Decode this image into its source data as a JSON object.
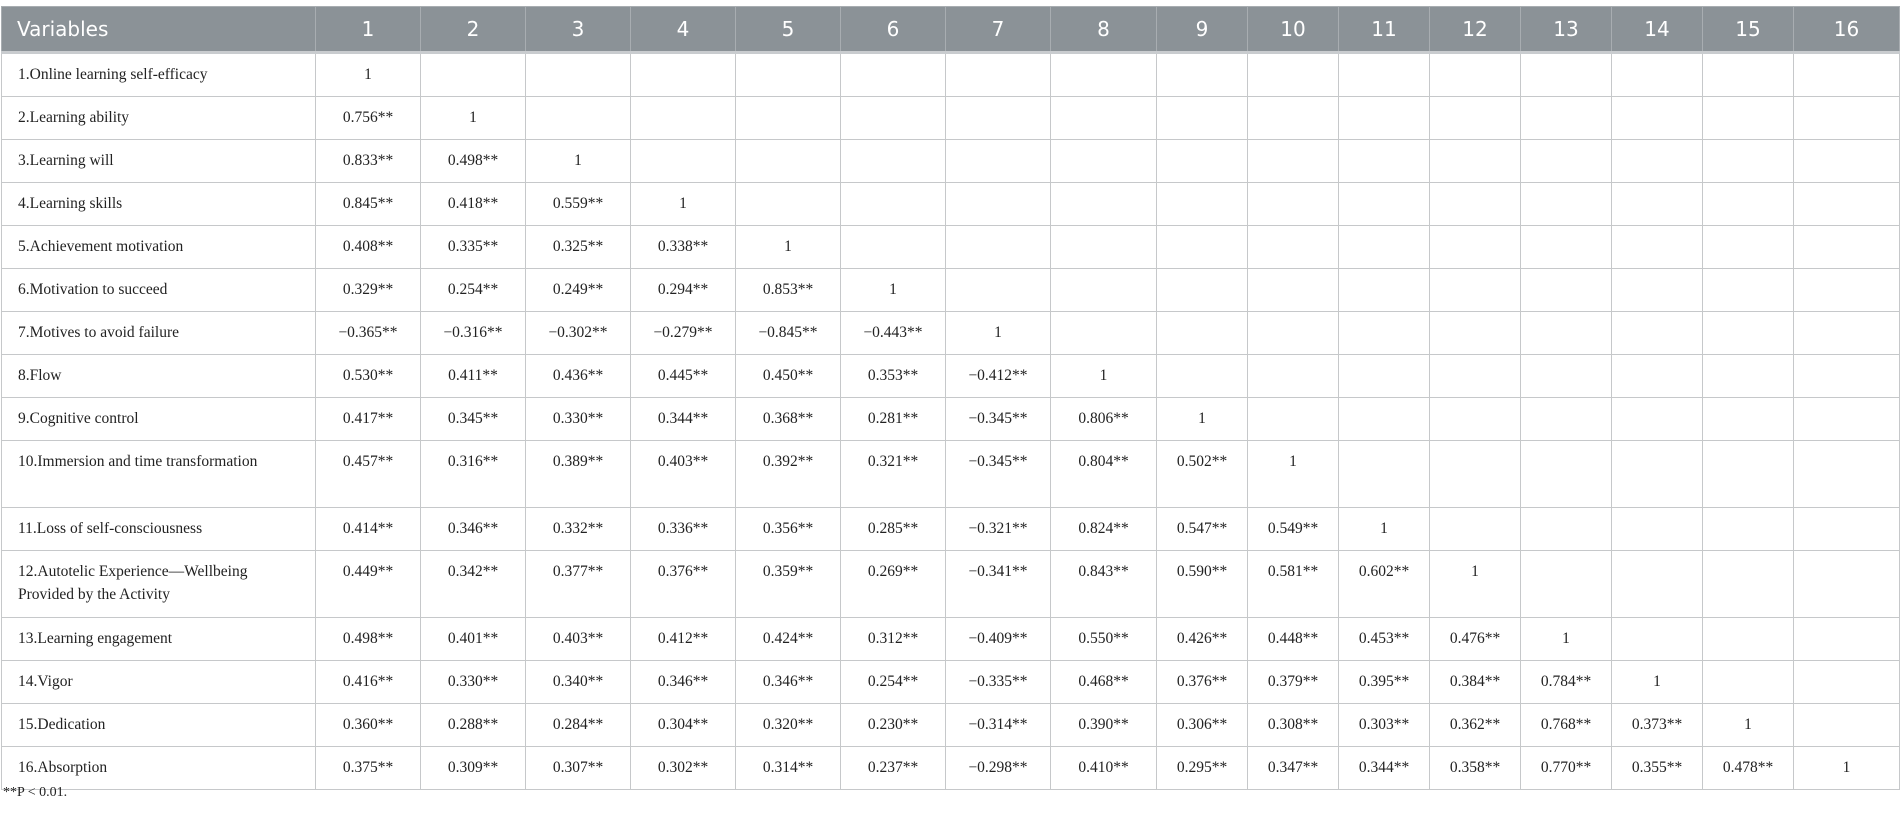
{
  "table": {
    "header": [
      "Variables",
      "1",
      "2",
      "3",
      "4",
      "5",
      "6",
      "7",
      "8",
      "9",
      "10",
      "11",
      "12",
      "13",
      "14",
      "15",
      "16"
    ],
    "rows": [
      {
        "label": "1.Online learning self-efficacy",
        "values": [
          "1"
        ]
      },
      {
        "label": "2.Learning ability",
        "values": [
          "0.756**",
          "1"
        ]
      },
      {
        "label": "3.Learning will",
        "values": [
          "0.833**",
          "0.498**",
          "1"
        ]
      },
      {
        "label": "4.Learning skills",
        "values": [
          "0.845**",
          "0.418**",
          "0.559**",
          "1"
        ]
      },
      {
        "label": "5.Achievement motivation",
        "values": [
          "0.408**",
          "0.335**",
          "0.325**",
          "0.338**",
          "1"
        ]
      },
      {
        "label": "6.Motivation to succeed",
        "values": [
          "0.329**",
          "0.254**",
          "0.249**",
          "0.294**",
          "0.853**",
          "1"
        ]
      },
      {
        "label": "7.Motives to avoid failure",
        "values": [
          "−0.365**",
          "−0.316**",
          "−0.302**",
          "−0.279**",
          "−0.845**",
          "−0.443**",
          "1"
        ]
      },
      {
        "label": "8.Flow",
        "values": [
          "0.530**",
          "0.411**",
          "0.436**",
          "0.445**",
          "0.450**",
          "0.353**",
          "−0.412**",
          "1"
        ]
      },
      {
        "label": "9.Cognitive control",
        "values": [
          "0.417**",
          "0.345**",
          "0.330**",
          "0.344**",
          "0.368**",
          "0.281**",
          "−0.345**",
          "0.806**",
          "1"
        ]
      },
      {
        "label": "10.Immersion and time transformation",
        "values": [
          "0.457**",
          "0.316**",
          "0.389**",
          "0.403**",
          "0.392**",
          "0.321**",
          "−0.345**",
          "0.804**",
          "0.502**",
          "1"
        ]
      },
      {
        "label": "11.Loss of self-consciousness",
        "values": [
          "0.414**",
          "0.346**",
          "0.332**",
          "0.336**",
          "0.356**",
          "0.285**",
          "−0.321**",
          "0.824**",
          "0.547**",
          "0.549**",
          "1"
        ]
      },
      {
        "label": "12.Autotelic Experience—Wellbeing Provided by the Activity",
        "values": [
          "0.449**",
          "0.342**",
          "0.377**",
          "0.376**",
          "0.359**",
          "0.269**",
          "−0.341**",
          "0.843**",
          "0.590**",
          "0.581**",
          "0.602**",
          "1"
        ]
      },
      {
        "label": "13.Learning engagement",
        "values": [
          "0.498**",
          "0.401**",
          "0.403**",
          "0.412**",
          "0.424**",
          "0.312**",
          "−0.409**",
          "0.550**",
          "0.426**",
          "0.448**",
          "0.453**",
          "0.476**",
          "1"
        ]
      },
      {
        "label": "14.Vigor",
        "values": [
          "0.416**",
          "0.330**",
          "0.340**",
          "0.346**",
          "0.346**",
          "0.254**",
          "−0.335**",
          "0.468**",
          "0.376**",
          "0.379**",
          "0.395**",
          "0.384**",
          "0.784**",
          "1"
        ]
      },
      {
        "label": "15.Dedication",
        "values": [
          "0.360**",
          "0.288**",
          "0.284**",
          "0.304**",
          "0.320**",
          "0.230**",
          "−0.314**",
          "0.390**",
          "0.306**",
          "0.308**",
          "0.303**",
          "0.362**",
          "0.768**",
          "0.373**",
          "1"
        ]
      },
      {
        "label": "16.Absorption",
        "values": [
          "0.375**",
          "0.309**",
          "0.307**",
          "0.302**",
          "0.314**",
          "0.237**",
          "−0.298**",
          "0.410**",
          "0.295**",
          "0.347**",
          "0.344**",
          "0.358**",
          "0.770**",
          "0.355**",
          "0.478**",
          "1"
        ]
      }
    ]
  },
  "footnote": "**P < 0.01.",
  "colors": {
    "header_bg": "#8b9297",
    "header_text": "#ffffff",
    "grid": "#c6c8ca"
  }
}
